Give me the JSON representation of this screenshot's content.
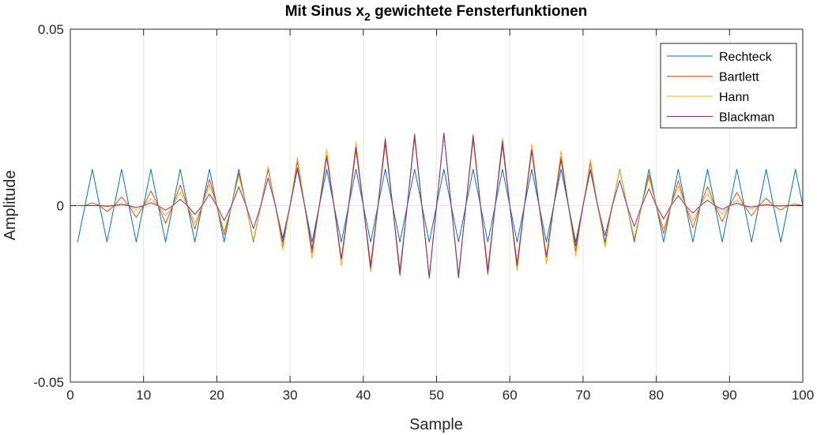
{
  "chart_data": {
    "type": "line",
    "title_main": "Mit Sinus x",
    "title_sub": "2",
    "title_rest": " gewichtete Fensterfunktionen",
    "xlabel": "Sample",
    "ylabel": "Amplitude",
    "xlim": [
      0,
      100
    ],
    "ylim": [
      -0.05,
      0.05
    ],
    "xticks": [
      0,
      10,
      20,
      30,
      40,
      50,
      60,
      70,
      80,
      90,
      100
    ],
    "yticks": [
      -0.05,
      0,
      0.05
    ],
    "ytick_labels": [
      "-0.05",
      "0",
      "0.05"
    ],
    "grid": true,
    "legend_position": "top-right",
    "signal": {
      "amplitude": 0.0103,
      "samples": 100,
      "period": 4,
      "phase_offset": 1
    },
    "series": [
      {
        "name": "Rechteck",
        "window": "rectangular",
        "color": "#0072BD"
      },
      {
        "name": "Bartlett",
        "window": "bartlett",
        "color": "#D95319"
      },
      {
        "name": "Hann",
        "window": "hann",
        "color": "#EDB120"
      },
      {
        "name": "Blackman",
        "window": "blackman",
        "color": "#7E2F8E"
      }
    ]
  }
}
